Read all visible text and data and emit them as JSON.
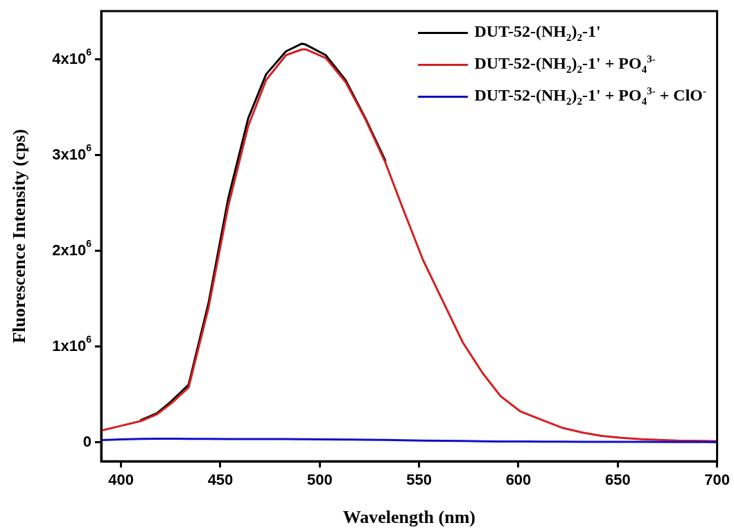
{
  "chart_data": {
    "type": "line",
    "xlabel": "Wavelength (nm)",
    "ylabel": "Fluorescence Intensity (cps)",
    "legend": "top right",
    "grid": false,
    "marker": "none",
    "xlim": [
      390,
      700
    ],
    "xticks": [
      400,
      450,
      500,
      550,
      600,
      650,
      700
    ],
    "ylim": [
      -200000,
      4500000
    ],
    "yticks": [
      {
        "value": 0,
        "label": "0"
      },
      {
        "value": 1000000,
        "label": "1x10$^{6}$"
      },
      {
        "value": 2000000,
        "label": "2x10$^{6}$"
      },
      {
        "value": 3000000,
        "label": "3x10$^{6}$"
      },
      {
        "value": 4000000,
        "label": "4x10$^{6}$"
      }
    ],
    "x": [
      390,
      400,
      410,
      418,
      425,
      434,
      444,
      454,
      464,
      473,
      483,
      491,
      493,
      503,
      513,
      523,
      533,
      542,
      552,
      562,
      572,
      582,
      591,
      601,
      612,
      622,
      632,
      642,
      652,
      662,
      680,
      700
    ],
    "series": [
      {
        "name": "DUT-52-(NH$_{2}$)$_{2}$-1'",
        "color": "#000000",
        "values": [
          null,
          null,
          230000,
          300000,
          420000,
          600000,
          1450000,
          2550000,
          3380000,
          3840000,
          4080000,
          4160000,
          4150000,
          4040000,
          3780000,
          3380000,
          2940000,
          null,
          null,
          null,
          null,
          null,
          null,
          null,
          null,
          null,
          null,
          null,
          null,
          null,
          null,
          null
        ]
      },
      {
        "name": "DUT-52-(NH$_{2}$)$_{2}$-1' + PO$_{4}$$^{3-}$",
        "color": "#d42020",
        "values": [
          120000,
          170000,
          220000,
          290000,
          400000,
          570000,
          1400000,
          2470000,
          3300000,
          3780000,
          4040000,
          4100000,
          4100000,
          4010000,
          3760000,
          3370000,
          2920000,
          2430000,
          1900000,
          1470000,
          1040000,
          720000,
          480000,
          320000,
          230000,
          150000,
          100000,
          65000,
          45000,
          30000,
          15000,
          10000
        ]
      },
      {
        "name": "DUT-52-(NH$_{2}$)$_{2}$-1' + PO$_{4}$$^{3-}$ + ClO$^{-}$",
        "color": "#1010c8",
        "values": [
          20000,
          28000,
          33000,
          35000,
          35000,
          34000,
          33000,
          32000,
          32000,
          31000,
          31000,
          30000,
          30000,
          29000,
          27000,
          25000,
          22000,
          19000,
          16000,
          13000,
          11000,
          9000,
          7000,
          6000,
          5000,
          4000,
          3000,
          3000,
          2000,
          2000,
          1000,
          0
        ]
      }
    ]
  }
}
